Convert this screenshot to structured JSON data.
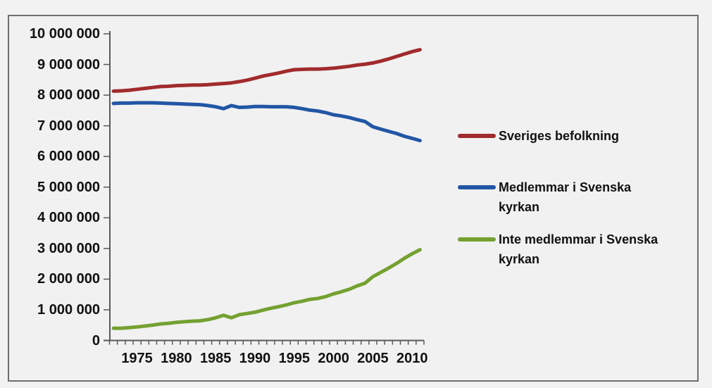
{
  "page": {
    "background": "#F2F2F2",
    "frame_border_color": "#6E6E6E",
    "axis_color": "#595959",
    "text_color": "#111111"
  },
  "chart_data": {
    "type": "line",
    "title": "",
    "xlabel": "",
    "ylabel": "",
    "grid": false,
    "legend_position": "right",
    "x_years": [
      1972,
      1973,
      1974,
      1975,
      1976,
      1977,
      1978,
      1979,
      1980,
      1981,
      1982,
      1983,
      1984,
      1985,
      1986,
      1987,
      1988,
      1989,
      1990,
      1991,
      1992,
      1993,
      1994,
      1995,
      1996,
      1997,
      1998,
      1999,
      2000,
      2001,
      2002,
      2003,
      2004,
      2005,
      2006,
      2007,
      2008,
      2009,
      2010,
      2011
    ],
    "series": [
      {
        "name": "Sveriges befolkning",
        "color": "#A12B2D",
        "values": [
          8130000,
          8140000,
          8160000,
          8190000,
          8220000,
          8250000,
          8280000,
          8290000,
          8310000,
          8320000,
          8330000,
          8330000,
          8340000,
          8360000,
          8380000,
          8400000,
          8440000,
          8490000,
          8550000,
          8620000,
          8670000,
          8720000,
          8780000,
          8830000,
          8840000,
          8850000,
          8850000,
          8860000,
          8880000,
          8910000,
          8940000,
          8980000,
          9010000,
          9050000,
          9110000,
          9180000,
          9260000,
          9340000,
          9420000,
          9480000
        ]
      },
      {
        "name": "Medlemmar i Svenska kyrkan",
        "color": "#2256A5",
        "values": [
          7730000,
          7740000,
          7740000,
          7750000,
          7750000,
          7750000,
          7740000,
          7730000,
          7720000,
          7710000,
          7700000,
          7690000,
          7660000,
          7620000,
          7560000,
          7660000,
          7600000,
          7610000,
          7630000,
          7630000,
          7620000,
          7620000,
          7620000,
          7600000,
          7560000,
          7510000,
          7480000,
          7430000,
          7360000,
          7320000,
          7270000,
          7200000,
          7140000,
          6970000,
          6890000,
          6820000,
          6750000,
          6660000,
          6590000,
          6520000
        ]
      },
      {
        "name": "Inte medlemmar i Svenska kyrkan",
        "color": "#74A131",
        "values": [
          400000,
          400000,
          420000,
          440000,
          470000,
          500000,
          540000,
          560000,
          590000,
          610000,
          630000,
          640000,
          680000,
          740000,
          820000,
          740000,
          840000,
          880000,
          920000,
          990000,
          1050000,
          1100000,
          1160000,
          1230000,
          1280000,
          1340000,
          1370000,
          1430000,
          1520000,
          1590000,
          1670000,
          1780000,
          1870000,
          2080000,
          2220000,
          2360000,
          2510000,
          2680000,
          2830000,
          2960000
        ]
      }
    ],
    "y_axis": {
      "min": 0,
      "max": 10000000,
      "tick_interval": 1000000,
      "tick_labels": [
        "0",
        "1 000 000",
        "2 000 000",
        "3 000 000",
        "4 000 000",
        "5 000 000",
        "6 000 000",
        "7 000 000",
        "8 000 000",
        "9 000 000",
        "10 000 000"
      ]
    },
    "x_axis": {
      "tick_labels": [
        "1975",
        "1980",
        "1985",
        "1990",
        "1995",
        "2000",
        "2005",
        "2010"
      ],
      "labeled_years": [
        1975,
        1980,
        1985,
        1990,
        1995,
        2000,
        2005,
        2010
      ]
    }
  }
}
